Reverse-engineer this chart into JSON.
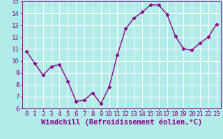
{
  "x": [
    0,
    1,
    2,
    3,
    4,
    5,
    6,
    7,
    8,
    9,
    10,
    11,
    12,
    13,
    14,
    15,
    16,
    17,
    18,
    19,
    20,
    21,
    22,
    23
  ],
  "y": [
    10.8,
    9.8,
    8.8,
    9.5,
    9.7,
    8.3,
    6.6,
    6.7,
    7.3,
    6.4,
    7.8,
    10.5,
    12.7,
    13.6,
    14.1,
    14.7,
    14.7,
    13.9,
    12.1,
    11.0,
    10.9,
    11.5,
    12.0,
    13.1
  ],
  "line_color": "#8B008B",
  "marker": "D",
  "markersize": 2.5,
  "linewidth": 1.0,
  "bg_color": "#b2ece8",
  "grid_color": "#ffffff",
  "xlabel": "Windchill (Refroidissement éolien,°C)",
  "xlabel_color": "#8B008B",
  "tick_color": "#8B008B",
  "ylim": [
    6,
    15
  ],
  "xlim_min": -0.5,
  "xlim_max": 23.5,
  "yticks": [
    6,
    7,
    8,
    9,
    10,
    11,
    12,
    13,
    14,
    15
  ],
  "xticks": [
    0,
    1,
    2,
    3,
    4,
    5,
    6,
    7,
    8,
    9,
    10,
    11,
    12,
    13,
    14,
    15,
    16,
    17,
    18,
    19,
    20,
    21,
    22,
    23
  ],
  "tick_fontsize": 6.5,
  "xlabel_fontsize": 7.5
}
